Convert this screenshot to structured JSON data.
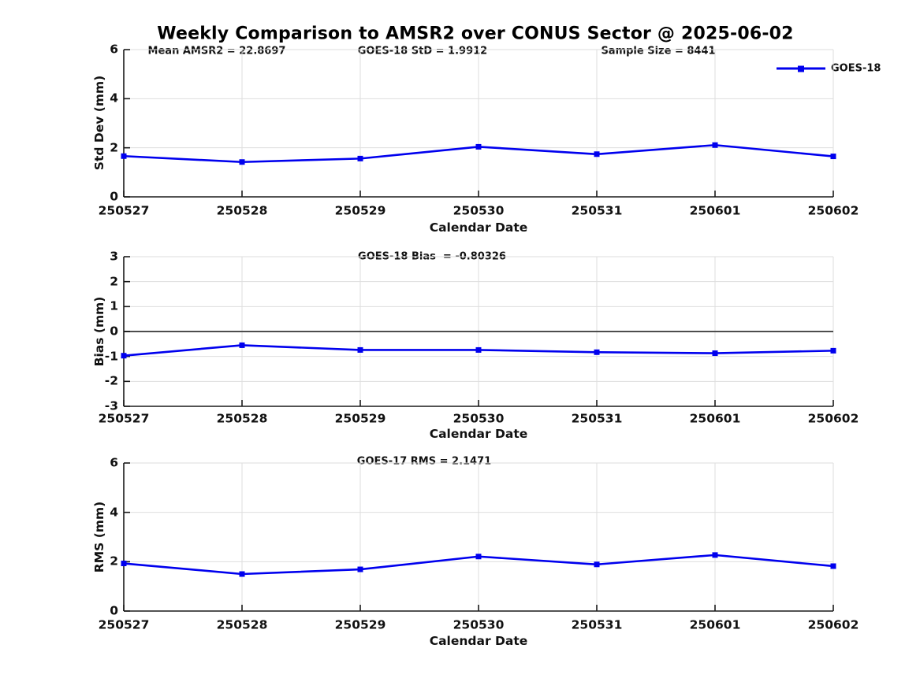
{
  "figure_title": "Weekly Comparison to AMSR2 over CONUS Sector @ 2025-06-02",
  "colors": {
    "series": "#0000EE",
    "grid": "#DEDEDE",
    "axis": "#1A1A1A",
    "zero_line": "#4D4D4D",
    "background": "#FFFFFF"
  },
  "chart_data": [
    {
      "type": "line",
      "id": "std-dev",
      "ylabel": "Std Dev (mm)",
      "xlabel": "Calendar Date",
      "ylim": [
        0,
        6
      ],
      "yticks": [
        0,
        2,
        4,
        6
      ],
      "grid": true,
      "zero_line": false,
      "categories": [
        "250527",
        "250528",
        "250529",
        "250530",
        "250531",
        "250601",
        "250602"
      ],
      "series": [
        {
          "name": "GOES-18",
          "marker": "square",
          "values": [
            1.66,
            1.42,
            1.56,
            2.04,
            1.74,
            2.11,
            1.65
          ]
        }
      ],
      "annotations": [
        {
          "text": "Mean AMSR2 = 22.8697"
        },
        {
          "text": "GOES-18 StD = 1.9912"
        },
        {
          "text": "Sample Size = 8441"
        }
      ],
      "legend": {
        "position": "northeast",
        "entries": [
          "GOES-18"
        ]
      }
    },
    {
      "type": "line",
      "id": "bias",
      "ylabel": "Bias (mm)",
      "xlabel": "Calendar Date",
      "ylim": [
        -3,
        3
      ],
      "yticks": [
        -3,
        -2,
        -1,
        0,
        1,
        2,
        3
      ],
      "grid": true,
      "zero_line": true,
      "categories": [
        "250527",
        "250528",
        "250529",
        "250530",
        "250531",
        "250601",
        "250602"
      ],
      "series": [
        {
          "name": "GOES-18",
          "marker": "square",
          "values": [
            -0.97,
            -0.55,
            -0.74,
            -0.74,
            -0.83,
            -0.87,
            -0.77
          ]
        }
      ],
      "annotations": [
        {
          "text": "GOES-18 Bias  = -0.80326"
        }
      ]
    },
    {
      "type": "line",
      "id": "rms",
      "ylabel": "RMS (mm)",
      "xlabel": "Calendar Date",
      "ylim": [
        0,
        6
      ],
      "yticks": [
        0,
        2,
        4,
        6
      ],
      "grid": true,
      "zero_line": false,
      "categories": [
        "250527",
        "250528",
        "250529",
        "250530",
        "250531",
        "250601",
        "250602"
      ],
      "series": [
        {
          "name": "GOES-18",
          "marker": "square",
          "values": [
            1.93,
            1.5,
            1.69,
            2.21,
            1.89,
            2.27,
            1.82
          ]
        }
      ],
      "annotations": [
        {
          "text": "GOES-17 RMS = 2.1471"
        }
      ]
    }
  ]
}
